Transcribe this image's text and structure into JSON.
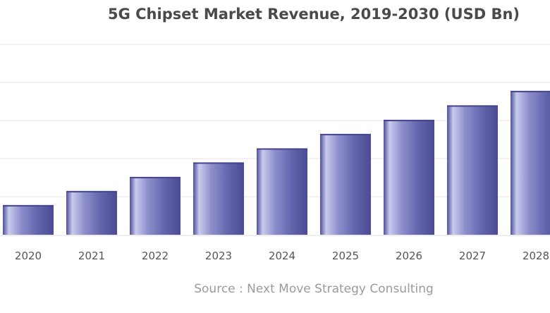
{
  "chart_data": {
    "type": "bar",
    "title": "5G Chipset Market Revenue, 2019-2030 (USD Bn)",
    "categories": [
      "2020",
      "2021",
      "2022",
      "2023",
      "2024",
      "2025",
      "2026",
      "2027",
      "2028"
    ],
    "values": [
      7.8,
      11.5,
      15.2,
      19.0,
      22.7,
      26.5,
      30.2,
      34.0,
      37.8
    ],
    "xlabel": "",
    "ylabel": "",
    "ylim": [
      0,
      50
    ],
    "grid": true,
    "source": "Source : Next Move Strategy Consulting"
  },
  "colors": {
    "bar_dark": "#5e5fa6",
    "bar_light": "#c6c8ec",
    "grid": "#e6e6e6"
  }
}
